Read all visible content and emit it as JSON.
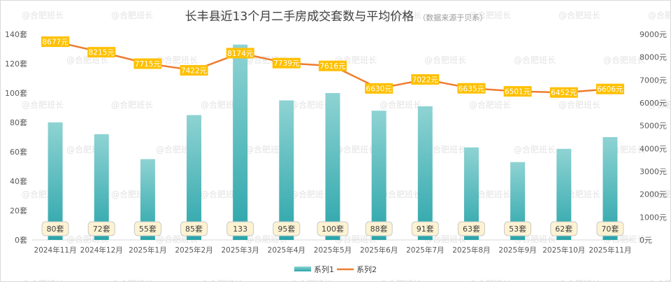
{
  "title": "长丰县近13个月二手房成交套数与平均价格",
  "subtitle": "（数据来源于贝系）",
  "watermark": "@合肥班长",
  "colors": {
    "bar_top": "#8fd3d3",
    "bar_bottom": "#2aa5aa",
    "line": "#ed7d31",
    "label_fill": "#ffc000"
  },
  "chart_data": {
    "type": "bar",
    "title": "长丰县近13个月二手房成交套数与平均价格",
    "subtitle": "（数据来源于贝系）",
    "categories": [
      "2024年11月",
      "2024年12月",
      "2025年1月",
      "2025年2月",
      "2025年3月",
      "2025年4月",
      "2025年5月",
      "2025年6月",
      "2025年7月",
      "2025年8月",
      "2025年9月",
      "2025年10月",
      "2025年11月"
    ],
    "series": [
      {
        "name": "系列1",
        "type": "bar",
        "axis": "left",
        "values": [
          80,
          72,
          55,
          85,
          133,
          95,
          100,
          88,
          91,
          63,
          53,
          62,
          70
        ],
        "labels": [
          "80套",
          "72套",
          "55套",
          "85套",
          "133",
          "95套",
          "100套",
          "88套",
          "91套",
          "63套",
          "53套",
          "62套",
          "70套"
        ]
      },
      {
        "name": "系列2",
        "type": "line",
        "axis": "right",
        "values": [
          8677,
          8215,
          7715,
          7422,
          8174,
          7739,
          7616,
          6630,
          7022,
          6635,
          6501,
          6452,
          6606
        ],
        "labels": [
          "8677元",
          "8215元",
          "7715元",
          "7422元",
          "8174元",
          "7739元",
          "7616元",
          "6630元",
          "7022元",
          "6635元",
          "6501元",
          "6452元",
          "6606元"
        ]
      }
    ],
    "y_left": {
      "lim": [
        0,
        140
      ],
      "ticks": [
        "0套",
        "20套",
        "40套",
        "60套",
        "80套",
        "100套",
        "120套",
        "140套"
      ],
      "tick_values": [
        0,
        20,
        40,
        60,
        80,
        100,
        120,
        140
      ]
    },
    "y_right": {
      "lim": [
        0,
        9000
      ],
      "ticks": [
        "0元",
        "1000元",
        "2000元",
        "3000元",
        "4000元",
        "5000元",
        "6000元",
        "7000元",
        "8000元",
        "9000元"
      ],
      "tick_values": [
        0,
        1000,
        2000,
        3000,
        4000,
        5000,
        6000,
        7000,
        8000,
        9000
      ]
    },
    "grid": false,
    "legend": {
      "position": "bottom",
      "items": [
        "系列1",
        "系列2"
      ]
    }
  }
}
